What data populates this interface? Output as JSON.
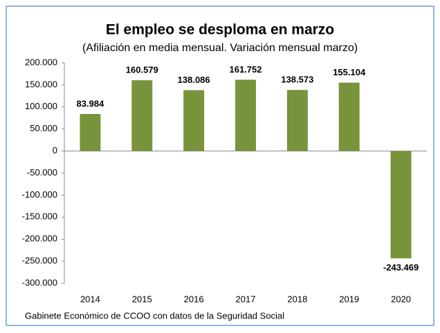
{
  "chart_data": {
    "type": "bar",
    "title": "El empleo se desploma en marzo",
    "subtitle": "(Afiliación en media mensual. Variación mensual marzo)",
    "categories": [
      "2014",
      "2015",
      "2016",
      "2017",
      "2018",
      "2019",
      "2020"
    ],
    "values": [
      83984,
      160579,
      138086,
      161752,
      138573,
      155104,
      -243469
    ],
    "value_labels": [
      "83.984",
      "160.579",
      "138.086",
      "161.752",
      "138.573",
      "155.104",
      "-243.469"
    ],
    "color": "#77933c",
    "ylim": [
      -300000,
      200000
    ],
    "yticks": [
      {
        "value": -300000,
        "label": "-300.000"
      },
      {
        "value": -250000,
        "label": "-250.000"
      },
      {
        "value": -200000,
        "label": "-200.000"
      },
      {
        "value": -150000,
        "label": "-150.000"
      },
      {
        "value": -100000,
        "label": "-100.000"
      },
      {
        "value": -50000,
        "label": "-50.000"
      },
      0,
      {
        "value": 50000,
        "label": "50.000"
      },
      {
        "value": 100000,
        "label": "100.000"
      },
      {
        "value": 150000,
        "label": "150.000"
      },
      {
        "value": 200000,
        "label": "200.000"
      }
    ],
    "source": "Gabinete Económico de CCOO con datos de la Seguridad Social"
  }
}
